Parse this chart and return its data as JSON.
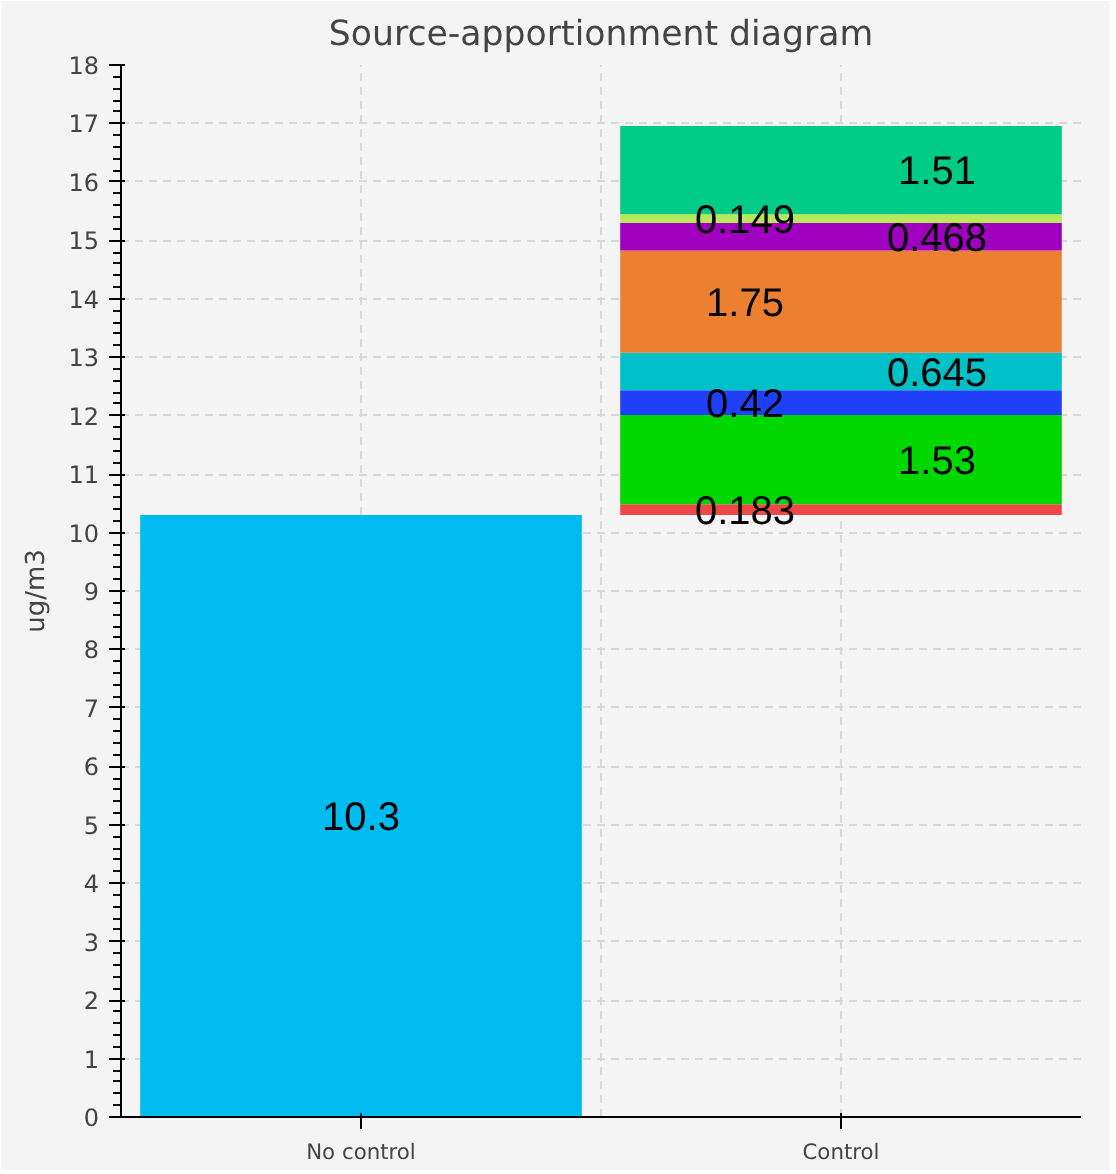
{
  "chart_data": {
    "type": "bar",
    "title": "Source-apportionment diagram",
    "ylabel": "ug/m3",
    "categories": [
      "No control",
      "Control"
    ],
    "series": [
      {
        "color": "#00bbf0",
        "values": [
          10.3,
          null
        ]
      },
      {
        "color": "#f04848",
        "values": [
          null,
          0.183
        ],
        "base": [
          null,
          10.3
        ]
      },
      {
        "color": "#00d800",
        "values": [
          null,
          1.53
        ],
        "base": [
          null,
          10.483
        ]
      },
      {
        "color": "#2040f8",
        "values": [
          null,
          0.42
        ],
        "base": [
          null,
          12.013
        ]
      },
      {
        "color": "#00c0c8",
        "values": [
          null,
          0.645
        ],
        "base": [
          null,
          12.433
        ]
      },
      {
        "color": "#ec8030",
        "values": [
          null,
          1.75
        ],
        "base": [
          null,
          13.078
        ]
      },
      {
        "color": "#a000c0",
        "values": [
          null,
          0.468
        ],
        "base": [
          null,
          14.828
        ]
      },
      {
        "color": "#b8e858",
        "values": [
          null,
          0.149
        ],
        "base": [
          null,
          15.296
        ]
      },
      {
        "color": "#00cc88",
        "values": [
          null,
          1.51
        ],
        "base": [
          null,
          15.445
        ]
      }
    ],
    "ylim": [
      0,
      18
    ],
    "yticks": [
      0,
      1,
      2,
      3,
      4,
      5,
      6,
      7,
      8,
      9,
      10,
      11,
      12,
      13,
      14,
      15,
      16,
      17,
      18
    ],
    "grid": true,
    "data_labels": true
  }
}
